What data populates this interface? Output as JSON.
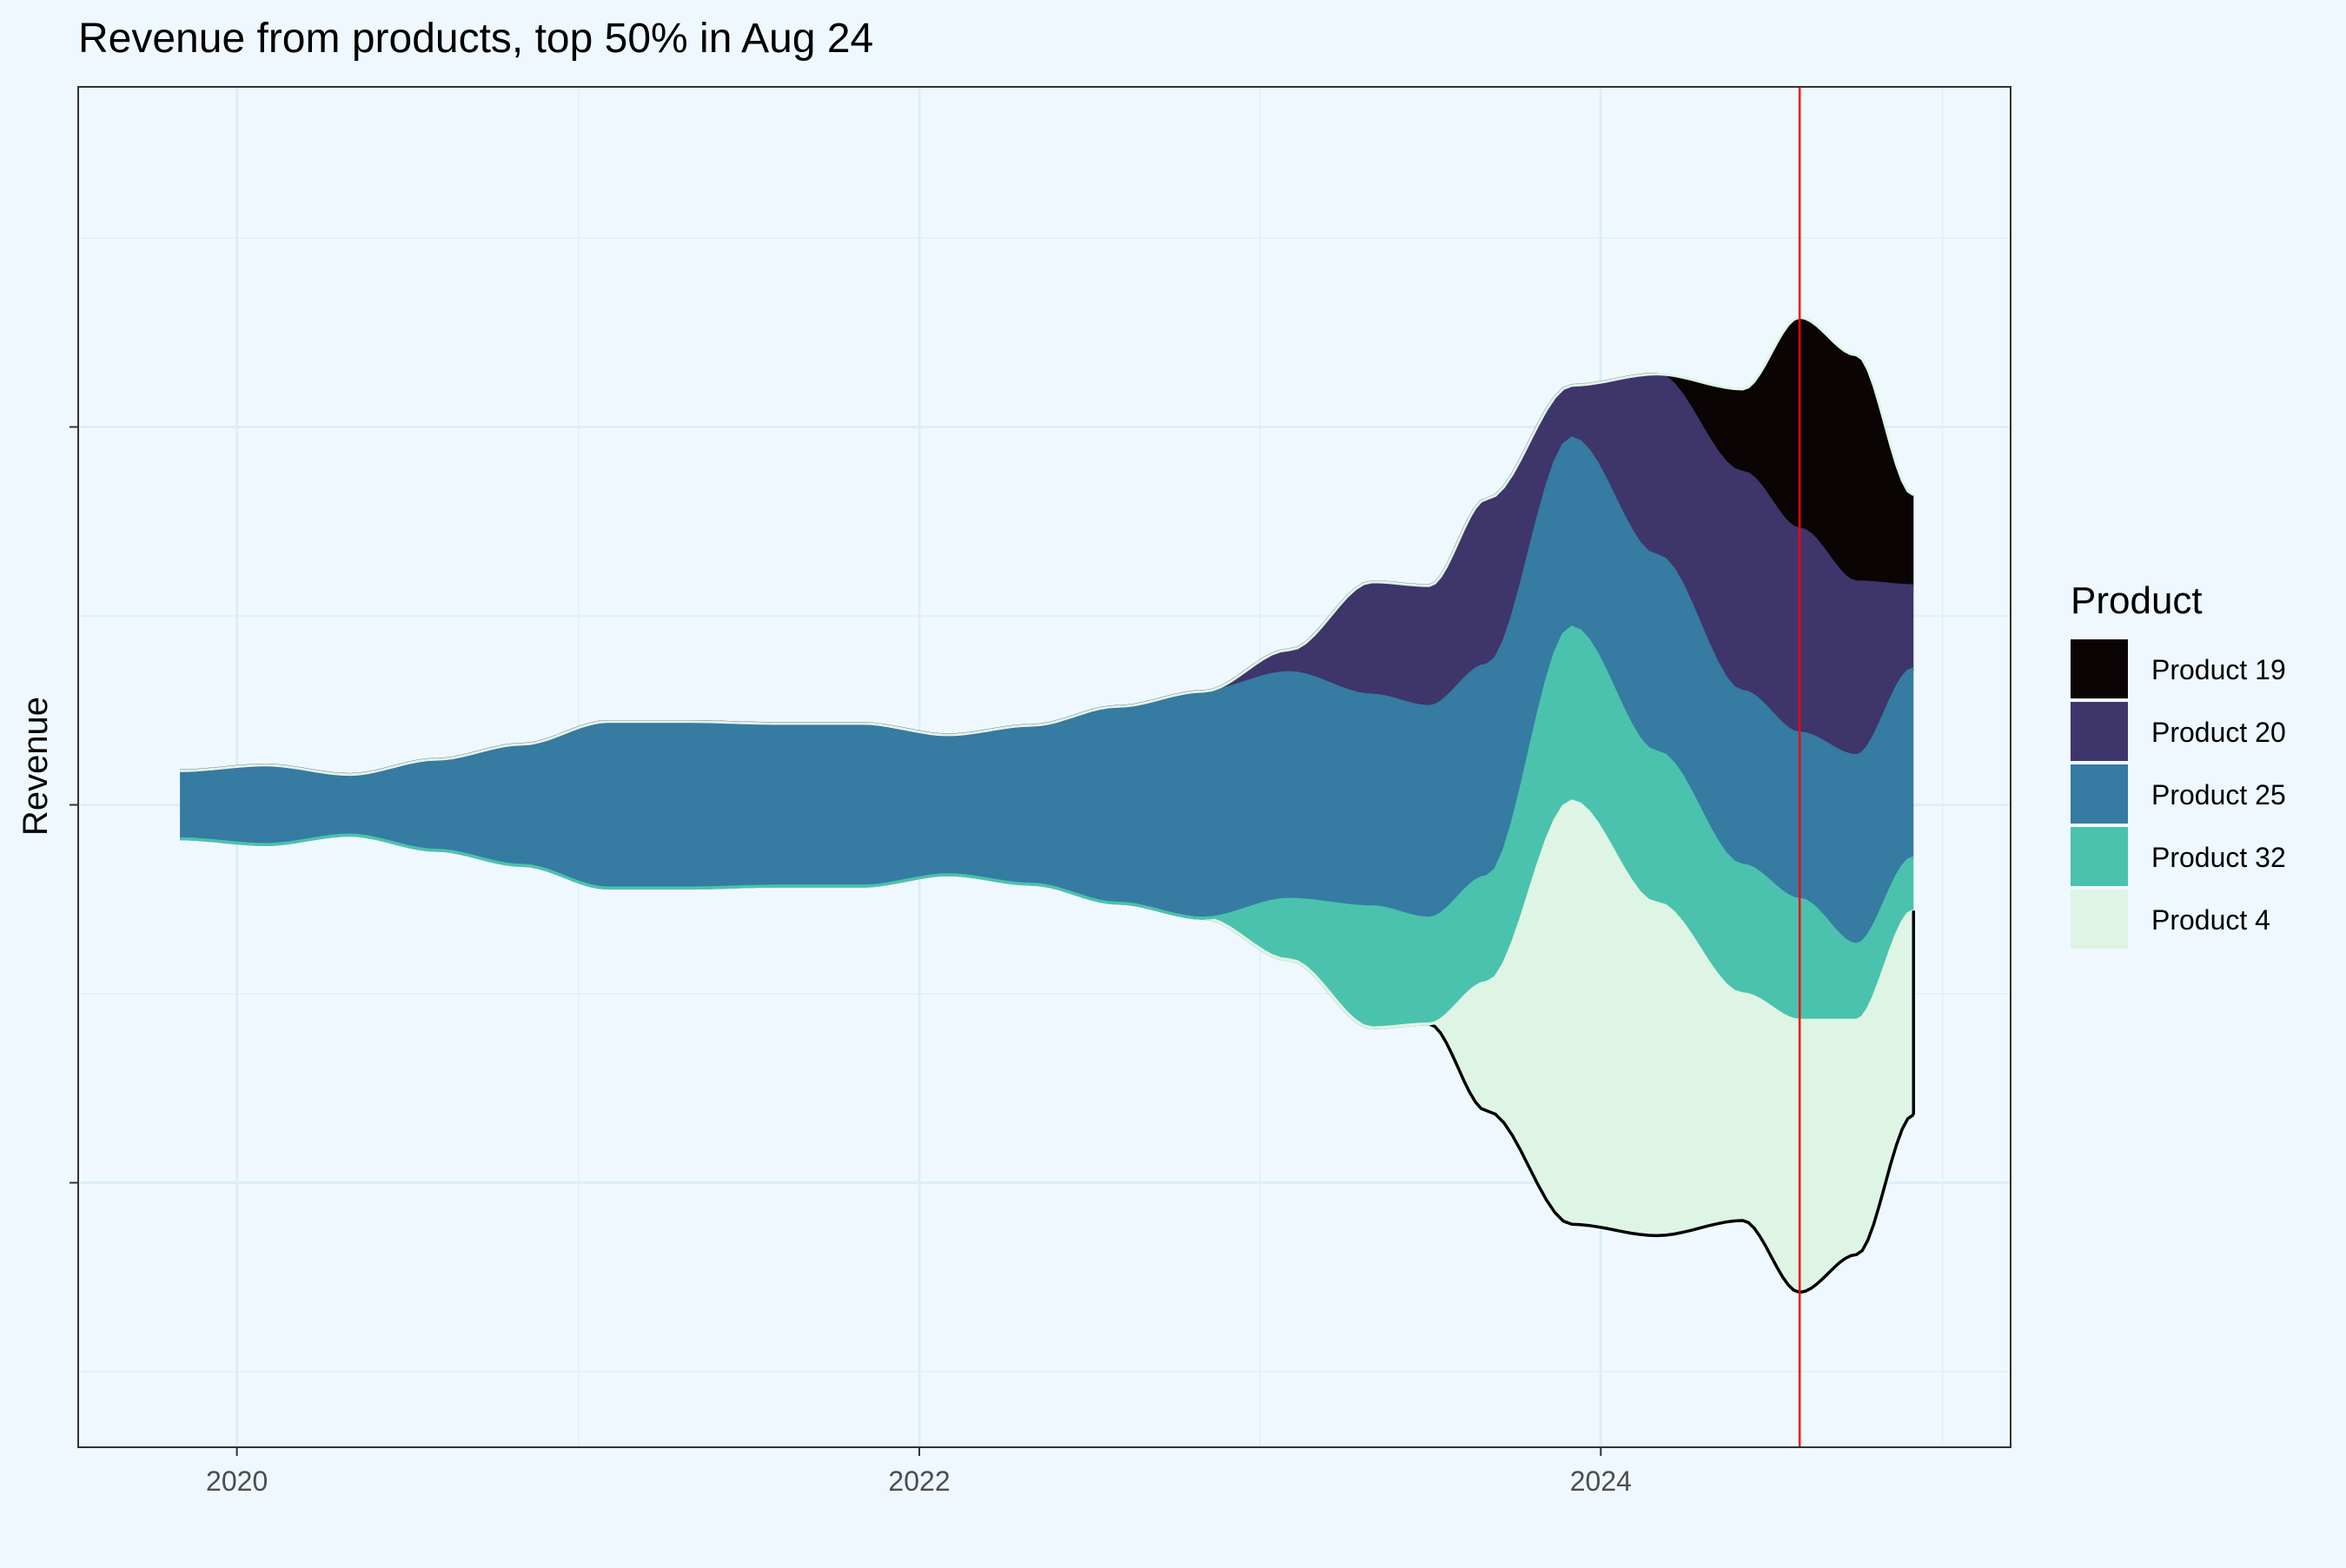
{
  "chart_data": {
    "type": "area",
    "subtype": "streamgraph",
    "title": "Revenue from products, top 50% in Aug 24",
    "xlabel": "",
    "ylabel": "Revenue",
    "x_axis": {
      "type": "date",
      "ticks": [
        "2020",
        "2022",
        "2024"
      ],
      "range": [
        "2019-07-15",
        "2025-03-15"
      ]
    },
    "y_axis": {
      "tick_labels_shown": false,
      "range": [
        -850,
        950
      ]
    },
    "grid": true,
    "reference_line": {
      "x": "2024-08-01",
      "color": "#FF0000"
    },
    "legend": {
      "title": "Product",
      "position": "right"
    },
    "series": [
      {
        "name": "Product 4",
        "color": "#DEF5E5"
      },
      {
        "name": "Product 32",
        "color": "#4BC2AD"
      },
      {
        "name": "Product 25",
        "color": "#357BA2"
      },
      {
        "name": "Product 20",
        "color": "#3E356B"
      },
      {
        "name": "Product 19",
        "color": "#0B0405"
      }
    ],
    "x": [
      "2019-11-01",
      "2020-02-01",
      "2020-05-01",
      "2020-08-01",
      "2020-11-01",
      "2021-02-01",
      "2021-05-01",
      "2021-08-01",
      "2021-11-01",
      "2022-02-01",
      "2022-05-01",
      "2022-08-01",
      "2022-11-01",
      "2023-02-01",
      "2023-05-01",
      "2023-07-01",
      "2023-09-01",
      "2023-12-01",
      "2024-03-01",
      "2024-06-01",
      "2024-08-01",
      "2024-10-01",
      "2024-12-01"
    ],
    "values": {
      "Product 4": [
        0,
        0,
        0,
        0,
        0,
        0,
        0,
        0,
        0,
        0,
        0,
        0,
        0,
        0,
        0,
        0,
        170,
        560,
        440,
        300,
        360,
        310,
        270
      ],
      "Product 32": [
        0,
        0,
        0,
        0,
        0,
        0,
        0,
        0,
        0,
        0,
        0,
        0,
        0,
        80,
        160,
        140,
        140,
        230,
        200,
        170,
        160,
        100,
        70
      ],
      "Product 25": [
        90,
        105,
        80,
        120,
        160,
        220,
        220,
        215,
        215,
        185,
        210,
        260,
        300,
        300,
        280,
        280,
        280,
        250,
        260,
        230,
        220,
        250,
        250
      ],
      "Product 20": [
        0,
        0,
        0,
        0,
        0,
        0,
        0,
        0,
        0,
        0,
        0,
        0,
        0,
        30,
        150,
        160,
        220,
        70,
        240,
        290,
        270,
        230,
        110
      ],
      "Product 19": [
        0,
        0,
        0,
        0,
        0,
        0,
        0,
        0,
        0,
        0,
        0,
        0,
        0,
        0,
        0,
        0,
        0,
        0,
        0,
        110,
        280,
        300,
        120
      ]
    }
  }
}
